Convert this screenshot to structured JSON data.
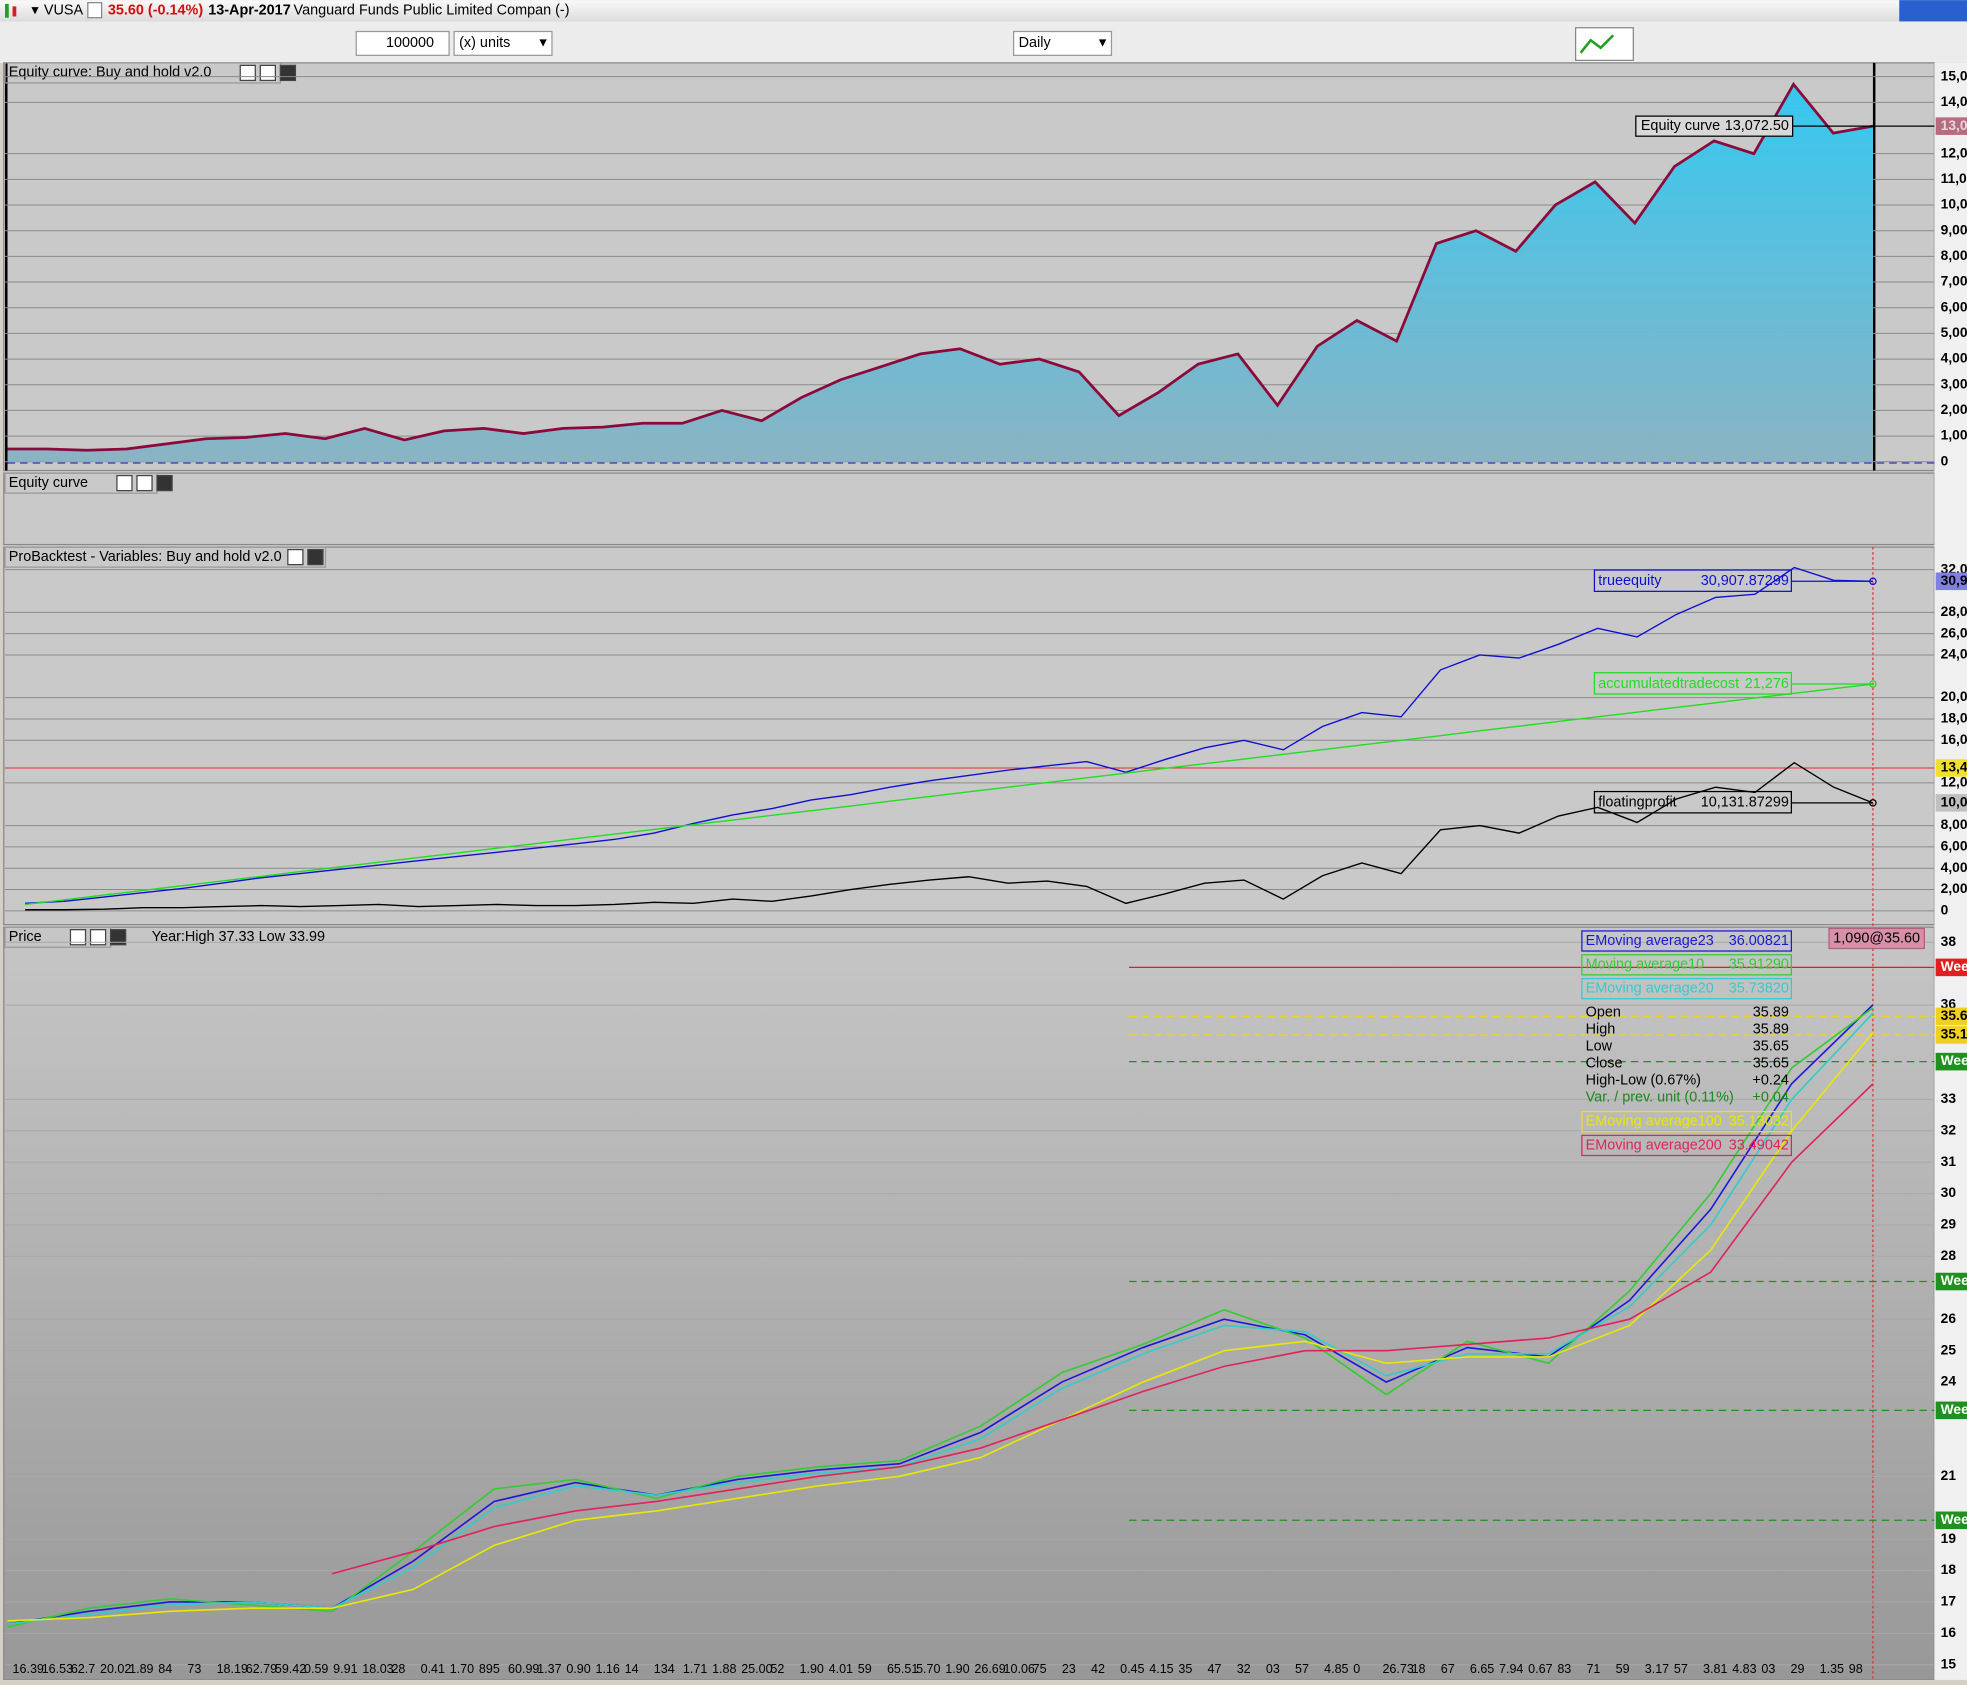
{
  "toolbar": {
    "symbol": "VUSA",
    "change": "35.60 (-0.14%)",
    "date": "13-Apr-2017",
    "name": "Vanguard Funds Public Limited Compan (-)",
    "quantity": "100000",
    "units": "(x) units",
    "period": "Daily"
  },
  "panels": [
    {
      "type": "area",
      "title": "Equity curve: Buy and hold v2.0",
      "ylim": [
        0,
        15000
      ],
      "yticks": [
        {
          "value": 15000,
          "label": "15,0"
        },
        {
          "value": 14000,
          "label": "14,0"
        },
        {
          "value": 12000,
          "label": "12,0"
        },
        {
          "value": 11000,
          "label": "11,0"
        },
        {
          "value": 10000,
          "label": "10,0"
        },
        {
          "value": 9000,
          "label": "9,00"
        },
        {
          "value": 8000,
          "label": "8,00"
        },
        {
          "value": 7000,
          "label": "7,00"
        },
        {
          "value": 6000,
          "label": "6,00"
        },
        {
          "value": 5000,
          "label": "5,00"
        },
        {
          "value": 4000,
          "label": "4,00"
        },
        {
          "value": 3000,
          "label": "3,00"
        },
        {
          "value": 2000,
          "label": "2,00"
        },
        {
          "value": 1000,
          "label": "1,00"
        },
        0
      ],
      "series": [
        {
          "name": "Equity curve",
          "value_label": "13,072.50",
          "marker": "13,0",
          "color": "#8b0a3c",
          "values": [
            500,
            500,
            450,
            500,
            700,
            900,
            950,
            1100,
            900,
            1300,
            850,
            1200,
            1300,
            1100,
            1300,
            1350,
            1500,
            1500,
            2000,
            1600,
            2500,
            3200,
            3700,
            4200,
            4400,
            3800,
            4000,
            3500,
            1800,
            2700,
            3800,
            4200,
            2200,
            4500,
            5500,
            4700,
            8500,
            9000,
            8200,
            10000,
            10900,
            9300,
            11500,
            12500,
            12000,
            14700,
            12800,
            13072.5
          ]
        }
      ]
    },
    {
      "type": "empty",
      "title": "Equity curve"
    },
    {
      "type": "line",
      "title": "ProBacktest - Variables: Buy and hold v2.0",
      "ylim": [
        0,
        32000
      ],
      "yticks": [
        {
          "value": 32000,
          "label": "32,0"
        },
        {
          "value": 28000,
          "label": "28,0"
        },
        {
          "value": 26000,
          "label": "26,0"
        },
        {
          "value": 24000,
          "label": "24,0"
        },
        {
          "value": 20000,
          "label": "20,0"
        },
        {
          "value": 18000,
          "label": "18,0"
        },
        {
          "value": 16000,
          "label": "16,0"
        },
        {
          "value": 12000,
          "label": "12,0"
        },
        {
          "value": 8000,
          "label": "8,00"
        },
        {
          "value": 6000,
          "label": "6,00"
        },
        {
          "value": 4000,
          "label": "4,00"
        },
        {
          "value": 2000,
          "label": "2,00"
        },
        0
      ],
      "reference_line": {
        "value": 13400,
        "label": "13,4",
        "color": "#e03030"
      },
      "series": [
        {
          "name": "trueequity",
          "value_label": "30,907.87299",
          "marker": "30,9",
          "color": "#1010d0",
          "values": [
            700,
            900,
            1300,
            1700,
            2100,
            2600,
            3100,
            3500,
            3900,
            4300,
            4700,
            5100,
            5500,
            5900,
            6300,
            6700,
            7300,
            8200,
            9000,
            9600,
            10400,
            10900,
            11600,
            12200,
            12700,
            13200,
            13600,
            14000,
            13000,
            14200,
            15300,
            16000,
            15100,
            17300,
            18600,
            18200,
            22600,
            24000,
            23700,
            25000,
            26500,
            25700,
            27800,
            29400,
            29700,
            32200,
            31000,
            30907.87299
          ]
        },
        {
          "name": "accumulatedtradecost",
          "value_label": "21,276",
          "color": "#22dd22",
          "values": [
            600,
            1040,
            1480,
            1920,
            2360,
            2800,
            3240,
            3680,
            4120,
            4560,
            5000,
            5440,
            5880,
            6320,
            6760,
            7200,
            7640,
            8080,
            8520,
            8960,
            9400,
            9840,
            10280,
            10720,
            11160,
            11600,
            12040,
            12480,
            12920,
            13360,
            13800,
            14240,
            14680,
            15120,
            15560,
            16000,
            16440,
            16880,
            17320,
            17760,
            18200,
            18640,
            19080,
            19520,
            19960,
            20400,
            20840,
            21276
          ]
        },
        {
          "name": "floatingprofit",
          "value_label": "10,131.87299",
          "marker": "10,0",
          "color": "#000000",
          "values": [
            100,
            100,
            150,
            300,
            300,
            400,
            500,
            400,
            500,
            600,
            400,
            500,
            600,
            500,
            500,
            600,
            800,
            700,
            1100,
            900,
            1400,
            2000,
            2500,
            2900,
            3200,
            2600,
            2800,
            2300,
            700,
            1600,
            2600,
            2900,
            1100,
            3300,
            4500,
            3500,
            7600,
            8000,
            7300,
            8900,
            9700,
            8300,
            10500,
            11600,
            11100,
            13900,
            11600,
            10131.87299
          ]
        }
      ]
    },
    {
      "type": "price",
      "title": "Price",
      "info": "Year:High 37.33 Low 33.99",
      "ylim": [
        15,
        38
      ],
      "yticks": [
        38,
        36,
        33,
        32,
        31,
        30,
        29,
        28,
        26,
        25,
        24,
        21,
        19,
        18,
        17,
        16,
        15
      ],
      "order_tag": "1,090@35.60",
      "levels": [
        {
          "value": 37.2,
          "label": "Wee",
          "color": "#e02020"
        },
        {
          "value": 35.64,
          "label": "35.6",
          "color": "#f0d020"
        },
        {
          "value": 35.05,
          "label": "35.1",
          "color": "#f0d020"
        },
        {
          "value": 34.2,
          "label": "Wee",
          "color": "#209020"
        },
        {
          "value": 27.2,
          "label": "Wee",
          "color": "#209020"
        },
        {
          "value": 23.1,
          "label": "Wee",
          "color": "#209020"
        },
        {
          "value": 19.6,
          "label": "Wee",
          "color": "#209020"
        }
      ],
      "ohlc": [
        [
          "Open",
          "35.89"
        ],
        [
          "High",
          "35.89"
        ],
        [
          "Low",
          "35.65"
        ],
        [
          "Close",
          "35.65"
        ],
        [
          "High-Low (0.67%)",
          "+0.24"
        ],
        [
          "Var. / prev. unit (0.11%)",
          "+0.04"
        ]
      ],
      "series": [
        {
          "name": "EMoving average23",
          "value_label": "36.00821",
          "color": "#1a1adb",
          "values": [
            16.3,
            16.7,
            17,
            17,
            16.8,
            18.3,
            20.2,
            20.8,
            20.4,
            20.9,
            21.2,
            21.4,
            22.4,
            24,
            25.1,
            26,
            25.5,
            24,
            25.1,
            24.8,
            26.6,
            29.5,
            33.5,
            36.00821
          ]
        },
        {
          "name": "Moving average10",
          "value_label": "35.91290",
          "color": "#33cc33",
          "values": [
            16.2,
            16.8,
            17.1,
            16.9,
            16.7,
            18.6,
            20.6,
            20.9,
            20.3,
            21,
            21.3,
            21.5,
            22.6,
            24.3,
            25.2,
            26.3,
            25.4,
            23.6,
            25.3,
            24.6,
            26.9,
            30,
            34,
            35.9129
          ]
        },
        {
          "name": "EMoving average20",
          "value_label": "35.73820",
          "color": "#33cccc",
          "values": [
            16.3,
            16.6,
            16.9,
            17,
            16.8,
            18.1,
            20,
            20.7,
            20.4,
            20.8,
            21.1,
            21.3,
            22.2,
            23.8,
            24.9,
            25.8,
            25.6,
            24.2,
            24.9,
            24.9,
            26.4,
            29,
            33,
            35.7382
          ]
        },
        {
          "name": "EMoving average100",
          "value_label": "35.13032",
          "color": "#e8e800",
          "values": [
            16.4,
            16.5,
            16.7,
            16.8,
            16.8,
            17.4,
            18.8,
            19.6,
            19.9,
            20.3,
            20.7,
            21,
            21.6,
            22.8,
            24,
            25,
            25.3,
            24.6,
            24.8,
            24.8,
            25.8,
            28.2,
            32,
            35.13032
          ]
        },
        {
          "name": "EMoving average200",
          "value_label": "33.49042",
          "color": "#e0245a",
          "values": [
            null,
            null,
            null,
            null,
            17.9,
            18.6,
            19.4,
            19.9,
            20.2,
            20.6,
            21,
            21.3,
            21.9,
            22.8,
            23.7,
            24.5,
            25,
            25,
            25.2,
            25.4,
            26,
            27.5,
            31,
            33.49042
          ]
        }
      ],
      "x_labels": [
        "16.39",
        "16.53",
        "62.7",
        "20.02",
        "1.89",
        "84",
        "73",
        "18.19",
        "62.79",
        "59.42",
        "0.59",
        "9.91",
        "18.03",
        "28",
        "0.41",
        "1.70",
        "895",
        "60.99",
        "1.37",
        "0.90",
        "1.16",
        "14",
        "134",
        "1.71",
        "1.88",
        "25.00",
        "52",
        "1.90",
        "4.01",
        "59",
        "65.51",
        "5.70",
        "1.90",
        "26.69",
        "10.06",
        "75",
        "23",
        "42",
        "0.45",
        "4.15",
        "35",
        "47",
        "32",
        "03",
        "57",
        "4.85",
        "0",
        "26.73",
        "18",
        "67",
        "6.65",
        "7.94",
        "0.67",
        "83",
        "71",
        "59",
        "3.17",
        "57",
        "3.81",
        "4.83",
        "03",
        "29",
        "1.35",
        "98"
      ]
    }
  ]
}
